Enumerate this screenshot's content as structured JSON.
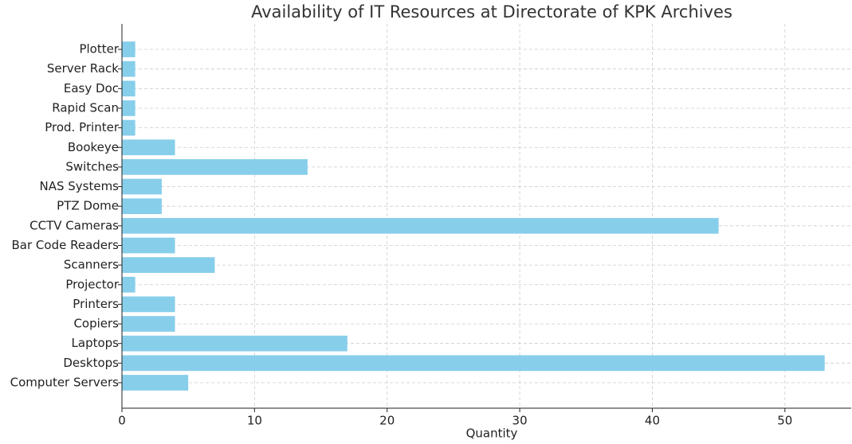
{
  "chart_data": {
    "type": "barh",
    "title": "Availability of IT Resources at Directorate of KPK Archives",
    "xlabel": "Quantity",
    "categories": [
      "Computer Servers",
      "Desktops",
      "Laptops",
      "Copiers",
      "Printers",
      "Projector",
      "Scanners",
      "Bar Code Readers",
      "CCTV Cameras",
      "PTZ Dome",
      "NAS Systems",
      "Switches",
      "Bookeye",
      "Prod. Printer",
      "Rapid Scan",
      "Easy Doc",
      "Server Rack",
      "Plotter"
    ],
    "values": [
      5,
      53,
      17,
      4,
      4,
      1,
      7,
      4,
      45,
      3,
      3,
      14,
      4,
      1,
      1,
      1,
      1,
      1
    ],
    "color": "#87ceeb",
    "xlim": [
      0,
      55
    ],
    "xticks": [
      0,
      10,
      20,
      30,
      40,
      50
    ],
    "grid": true
  }
}
